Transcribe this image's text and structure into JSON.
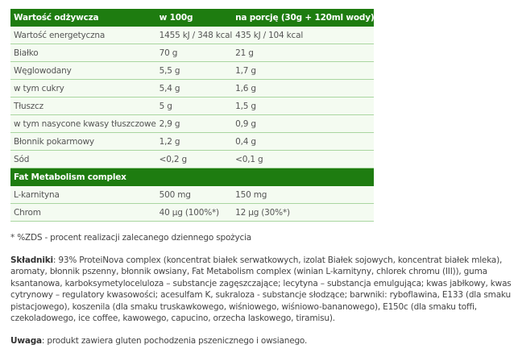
{
  "table": {
    "header": [
      "Wartość odżywcza",
      "w 100g",
      "na porcję (30g + 120ml wody)"
    ],
    "rows": [
      [
        "Wartość energetyczna",
        "1455 kJ / 348 kcal",
        "435 kJ / 104 kcal"
      ],
      [
        "Białko",
        "70 g",
        "21 g"
      ],
      [
        "Węglowodany",
        "5,5 g",
        "1,7 g"
      ],
      [
        "w tym cukry",
        "5,4 g",
        "1,6 g"
      ],
      [
        "Tłuszcz",
        "5 g",
        "1,5 g"
      ],
      [
        "w tym nasycone kwasy tłuszczowe",
        "2,9 g",
        "0,9 g"
      ],
      [
        "Błonnik pokarmowy",
        "1,2 g",
        "0,4 g"
      ],
      [
        "Sód",
        "<0,2 g",
        "<0,1 g"
      ]
    ],
    "section": "Fat Metabolism complex",
    "section_rows": [
      [
        "L-karnityna",
        "500 mg",
        "150 mg"
      ],
      [
        "Chrom",
        "40 µg (100%*)",
        "12 µg (30%*)"
      ]
    ]
  },
  "footnote": "* %ZDS - procent realizacji zalecanego dziennego spożycia",
  "ingredients": {
    "label": "Składniki",
    "text": ": 93% ProteiNova complex (koncentrat białek serwatkowych, izolat Białek sojowych, koncentrat białek mleka), aromaty, błonnik pszenny, błonnik owsiany, Fat Metabolism complex (winian L-karnityny, chlorek chromu (III)), guma ksantanowa, karboksymetyloceluloza – substancje zagęszczające; lecytyna – substancja emulgująca; kwas jabłkowy, kwas cytrynowy – regulatory kwasowości; acesulfam K, sukraloza - substancje słodzące; barwniki: ryboflawina, E133 (dla smaku pistacjowego), koszenila (dla smaku truskawkowego, wiśniowego, wiśniowo-bananowego), E150c (dla smaku toffi, czekoladowego, ice coffee, kawowego, capucino, orzecha laskowego, tiramisu)."
  },
  "warning": {
    "label": "Uwaga",
    "text": ": produkt zawiera gluten pochodzenia pszenicznego i owsianego."
  }
}
